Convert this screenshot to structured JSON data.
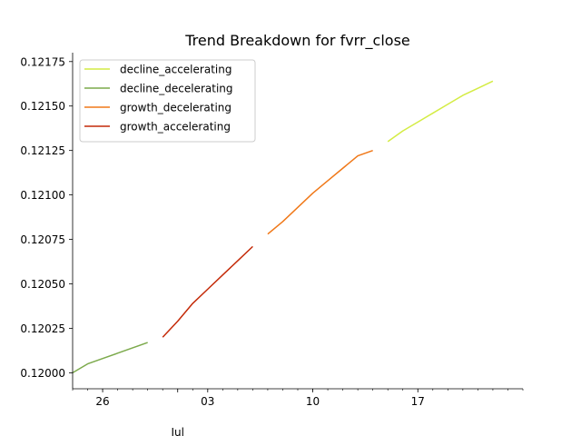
{
  "chart_data": {
    "type": "line",
    "title": "Trend Breakdown for fvrr_close",
    "xlabel": "",
    "ylabel": "",
    "x_range": [
      "2024-06-24",
      "2024-07-24"
    ],
    "ylim": [
      0.11991,
      0.1218
    ],
    "x_ticks": [
      {
        "date": "2024-06-26",
        "label": "26"
      },
      {
        "date": "2024-07-03",
        "label": "03"
      },
      {
        "date": "2024-07-10",
        "label": "10"
      },
      {
        "date": "2024-07-17",
        "label": "17"
      }
    ],
    "x_secondary_label": "Jul",
    "x_secondary_label_date": "2024-07-01",
    "y_ticks": [
      {
        "value": 0.12,
        "label": "0.12000"
      },
      {
        "value": 0.12025,
        "label": "0.12025"
      },
      {
        "value": 0.1205,
        "label": "0.12050"
      },
      {
        "value": 0.12075,
        "label": "0.12075"
      },
      {
        "value": 0.121,
        "label": "0.12100"
      },
      {
        "value": 0.12125,
        "label": "0.12125"
      },
      {
        "value": 0.1215,
        "label": "0.12150"
      },
      {
        "value": 0.12175,
        "label": "0.12175"
      }
    ],
    "grid": false,
    "legend_position": "upper-left",
    "series": [
      {
        "name": "decline_accelerating",
        "color": "#d4ec44",
        "points": [
          [
            "2024-07-15",
            0.1213
          ],
          [
            "2024-07-16",
            0.12136
          ],
          [
            "2024-07-17",
            0.12141
          ],
          [
            "2024-07-18",
            0.12146
          ],
          [
            "2024-07-19",
            0.12151
          ],
          [
            "2024-07-20",
            0.12156
          ],
          [
            "2024-07-21",
            0.1216
          ],
          [
            "2024-07-22",
            0.12164
          ]
        ]
      },
      {
        "name": "decline_decelerating",
        "color": "#7caa4c",
        "points": [
          [
            "2024-06-24",
            0.12
          ],
          [
            "2024-06-25",
            0.12005
          ],
          [
            "2024-06-26",
            0.12008
          ],
          [
            "2024-06-27",
            0.12011
          ],
          [
            "2024-06-28",
            0.12014
          ],
          [
            "2024-06-29",
            0.12017
          ]
        ]
      },
      {
        "name": "growth_decelerating",
        "color": "#f07818",
        "points": [
          [
            "2024-07-07",
            0.12078
          ],
          [
            "2024-07-08",
            0.12085
          ],
          [
            "2024-07-09",
            0.12093
          ],
          [
            "2024-07-10",
            0.12101
          ],
          [
            "2024-07-11",
            0.12108
          ],
          [
            "2024-07-12",
            0.12115
          ],
          [
            "2024-07-13",
            0.12122
          ],
          [
            "2024-07-14",
            0.12125
          ]
        ]
      },
      {
        "name": "growth_accelerating",
        "color": "#c42a08",
        "points": [
          [
            "2024-06-30",
            0.1202
          ],
          [
            "2024-07-01",
            0.12029
          ],
          [
            "2024-07-02",
            0.12039
          ],
          [
            "2024-07-03",
            0.12047
          ],
          [
            "2024-07-04",
            0.12055
          ],
          [
            "2024-07-05",
            0.12063
          ],
          [
            "2024-07-06",
            0.12071
          ]
        ]
      }
    ]
  }
}
